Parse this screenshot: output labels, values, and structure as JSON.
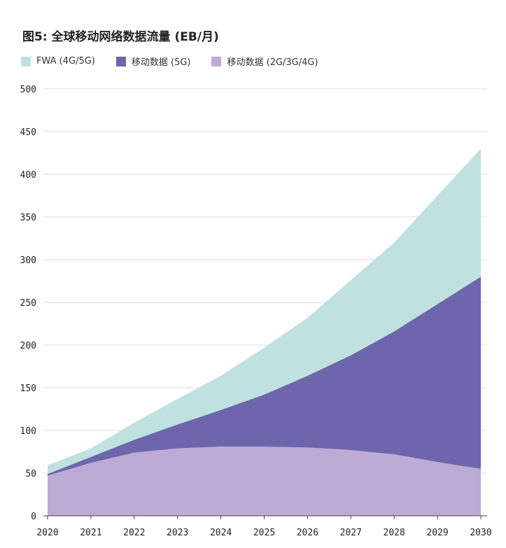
{
  "chart_data": {
    "type": "area",
    "stacked": true,
    "title": "图5: 全球移动网络数据流量 (EB/月)",
    "xlabel": "",
    "ylabel": "",
    "categories": [
      "2020",
      "2021",
      "2022",
      "2023",
      "2024",
      "2025",
      "2026",
      "2027",
      "2028",
      "2029",
      "2030"
    ],
    "ylim": [
      0,
      500
    ],
    "yticks": [
      0,
      50,
      100,
      150,
      200,
      250,
      300,
      350,
      400,
      450,
      500
    ],
    "grid": "horizontal",
    "legend_position": "top-left",
    "series": [
      {
        "name": "移动数据 (2G/3G/4G)",
        "color": "#bcabd4",
        "values": [
          47,
          62,
          74,
          79,
          81,
          81,
          80,
          77,
          72,
          63,
          55
        ]
      },
      {
        "name": "移动数据 (5G)",
        "color": "#6e66ad",
        "values": [
          2,
          7,
          15,
          28,
          43,
          61,
          84,
          111,
          144,
          185,
          225
        ]
      },
      {
        "name": "FWA (4G/5G)",
        "color": "#bfe1e0",
        "values": [
          10,
          10,
          20,
          30,
          40,
          55,
          68,
          88,
          104,
          127,
          150
        ]
      }
    ]
  }
}
